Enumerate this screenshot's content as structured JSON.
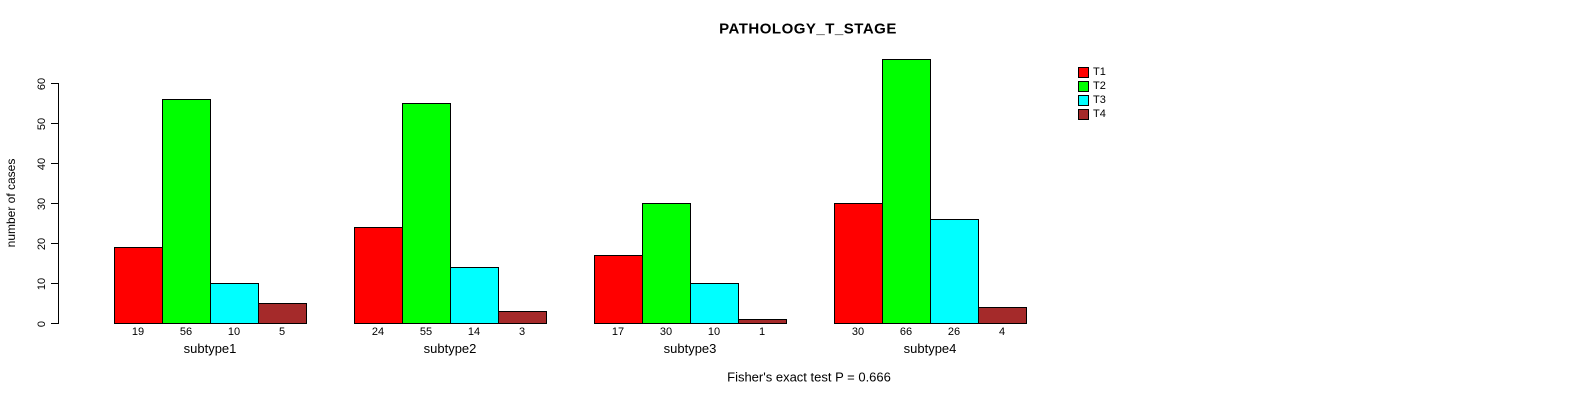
{
  "title": "PATHOLOGY_T_STAGE",
  "y_axis": {
    "label": "number of cases"
  },
  "footer": "Fisher's exact test P = 0.666",
  "chart_data": {
    "type": "bar",
    "title": "PATHOLOGY_T_STAGE",
    "xlabel": "",
    "ylabel": "number of cases",
    "ylim": [
      0,
      60
    ],
    "yticks": [
      0,
      10,
      20,
      30,
      40,
      50,
      60
    ],
    "grid": false,
    "legend_position": "top-right",
    "bar_value_labels": true,
    "categories": [
      "subtype1",
      "subtype2",
      "subtype3",
      "subtype4"
    ],
    "series": [
      {
        "name": "T1",
        "color": "#FF0000",
        "values": [
          19,
          24,
          17,
          30
        ]
      },
      {
        "name": "T2",
        "color": "#00FF00",
        "values": [
          56,
          55,
          30,
          66
        ]
      },
      {
        "name": "T3",
        "color": "#00FFFF",
        "values": [
          10,
          14,
          10,
          26
        ]
      },
      {
        "name": "T4",
        "color": "#A52A2A",
        "values": [
          5,
          3,
          1,
          4
        ]
      }
    ],
    "annotation": "Fisher's exact test P = 0.666"
  }
}
